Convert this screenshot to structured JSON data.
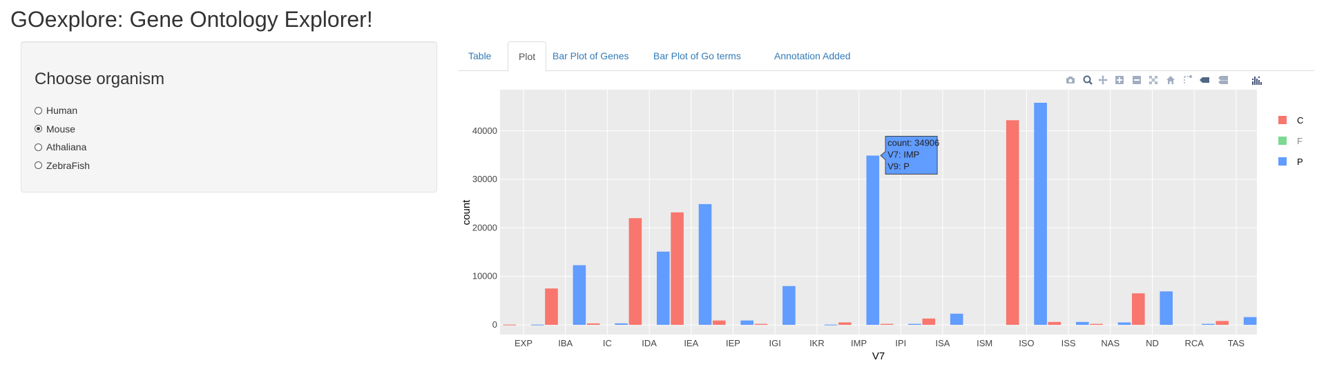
{
  "app": {
    "title": "GOexplore: Gene Ontology Explorer!"
  },
  "sidebar": {
    "heading": "Choose organism",
    "options": [
      {
        "label": "Human",
        "checked": false
      },
      {
        "label": "Mouse",
        "checked": true
      },
      {
        "label": "Athaliana",
        "checked": false
      },
      {
        "label": "ZebraFish",
        "checked": false
      }
    ]
  },
  "tabs": [
    {
      "label": "Table",
      "active": false
    },
    {
      "label": "Plot",
      "active": true
    },
    {
      "label": "Bar Plot of Genes",
      "active": false
    },
    {
      "label": "Bar Plot of Go terms",
      "active": false
    },
    {
      "label": "Annotation Added",
      "active": false
    }
  ],
  "modebar": {
    "buttons": [
      "camera-icon",
      "zoom-icon",
      "pan-icon",
      "zoom-in-icon",
      "zoom-out-icon",
      "autoscale-icon",
      "reset-axes-icon",
      "spike-lines-icon",
      "hover-closest-icon",
      "hover-compare-icon",
      "plotly-logo-icon"
    ]
  },
  "chart_data": {
    "type": "bar",
    "xlabel": "V7",
    "ylabel": "count",
    "categories": [
      "EXP",
      "IBA",
      "IC",
      "IDA",
      "IEA",
      "IEP",
      "IGI",
      "IKR",
      "IMP",
      "IPI",
      "ISA",
      "ISM",
      "ISO",
      "ISS",
      "NAS",
      "ND",
      "RCA",
      "TAS"
    ],
    "ylim": [
      -2000,
      48500
    ],
    "yticks": [
      0,
      10000,
      20000,
      30000,
      40000
    ],
    "ytick_labels": [
      "0",
      "10000",
      "20000",
      "30000",
      "40000"
    ],
    "legend_position": "right",
    "grid": true,
    "series": [
      {
        "name": "C",
        "color": "#f8766d",
        "values": [
          50,
          7500,
          300,
          22000,
          23200,
          900,
          200,
          0,
          500,
          200,
          1300,
          0,
          42200,
          600,
          200,
          6500,
          0,
          800
        ]
      },
      {
        "name": "F",
        "color": "#7cd992",
        "values": [
          0,
          0,
          0,
          0,
          0,
          0,
          0,
          0,
          0,
          0,
          0,
          0,
          0,
          0,
          0,
          0,
          0,
          0
        ]
      },
      {
        "name": "P",
        "color": "#619cff",
        "values": [
          50,
          12300,
          300,
          15100,
          24900,
          900,
          8000,
          50,
          34906,
          200,
          2300,
          0,
          45800,
          600,
          500,
          6900,
          200,
          1600
        ]
      }
    ],
    "hover": {
      "category": "IMP",
      "series": "P",
      "lines": [
        "count: 34906",
        "V7: IMP",
        "V9: P"
      ]
    }
  }
}
